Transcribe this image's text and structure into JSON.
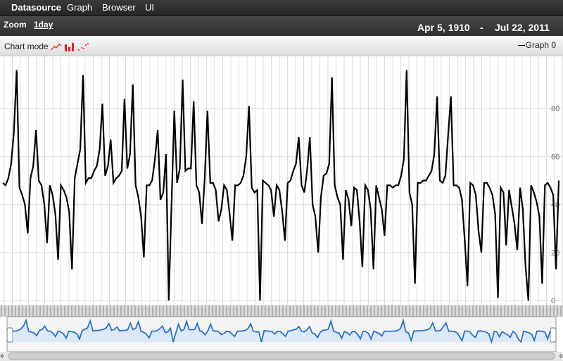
{
  "menu": {
    "datasource": "Datasource",
    "graph": "Graph",
    "browser": "Browser",
    "ui": "UI"
  },
  "toolbar": {
    "zoom_label": "Zoom",
    "zoom_value": "1day",
    "start_date": "Apr 5, 1910",
    "dash": "-",
    "end_date": "Jul 22, 2011"
  },
  "modebar": {
    "label": "Chart mode",
    "legend": "Graph 0"
  },
  "colors": {
    "line": "#000000",
    "navigator": "#2a6fc9",
    "menubar": "#2f2f2f"
  },
  "icons": {
    "mode_line": "line-chart-icon",
    "mode_bar": "bar-chart-icon",
    "mode_scatter": "scatter-chart-icon"
  },
  "chart_data": {
    "type": "line",
    "ylim": [
      0,
      100
    ],
    "yticks": [
      "0",
      "20",
      "40",
      "60",
      "80"
    ],
    "grid": true,
    "series": [
      {
        "name": "Graph 0",
        "values": [
          49,
          48,
          51,
          57,
          70,
          96,
          47,
          44,
          40,
          28,
          51,
          56,
          71,
          50,
          48,
          40,
          24,
          48,
          44,
          36,
          17,
          48,
          46,
          43,
          37,
          13,
          51,
          57,
          63,
          94,
          49,
          51,
          51,
          54,
          56,
          63,
          82,
          52,
          56,
          67,
          49,
          51,
          52,
          54,
          84,
          55,
          61,
          90,
          48,
          43,
          35,
          18,
          48,
          48,
          50,
          59,
          71,
          42,
          45,
          61,
          0,
          41,
          79,
          49,
          55,
          92,
          54,
          55,
          55,
          83,
          48,
          45,
          32,
          51,
          79,
          49,
          49,
          46,
          33,
          38,
          48,
          46,
          36,
          25,
          48,
          48,
          49,
          52,
          60,
          81,
          47,
          45,
          46,
          0,
          50,
          49,
          48,
          46,
          35,
          48,
          46,
          37,
          25,
          49,
          50,
          54,
          57,
          68,
          48,
          45,
          54,
          68,
          40,
          35,
          20,
          43,
          52,
          53,
          57,
          93,
          48,
          43,
          40,
          17,
          46,
          42,
          31,
          47,
          46,
          33,
          14,
          48,
          46,
          38,
          13,
          48,
          43,
          38,
          27,
          48,
          48,
          47,
          48,
          48,
          52,
          59,
          96,
          45,
          40,
          7,
          49,
          49,
          50,
          50,
          52,
          54,
          61,
          85,
          50,
          49,
          52,
          69,
          85,
          48,
          48,
          47,
          42,
          25,
          6,
          49,
          48,
          44,
          29,
          20,
          49,
          49,
          47,
          44,
          36,
          1,
          47,
          45,
          23,
          46,
          39,
          32,
          21,
          47,
          38,
          14,
          0,
          48,
          45,
          41,
          35,
          7,
          48,
          49,
          47,
          44,
          13,
          50
        ]
      }
    ]
  }
}
